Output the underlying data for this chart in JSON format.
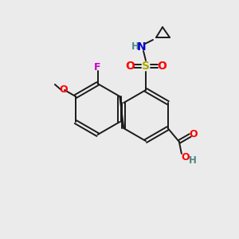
{
  "bg_color": "#ebebeb",
  "bond_color": "#1a1a1a",
  "colors": {
    "O": "#ff0000",
    "N": "#0000cc",
    "S": "#aaaa00",
    "F": "#cc00cc",
    "H_gray": "#4a8a8a",
    "C": "#1a1a1a"
  },
  "figsize": [
    3.0,
    3.0
  ],
  "dpi": 100
}
